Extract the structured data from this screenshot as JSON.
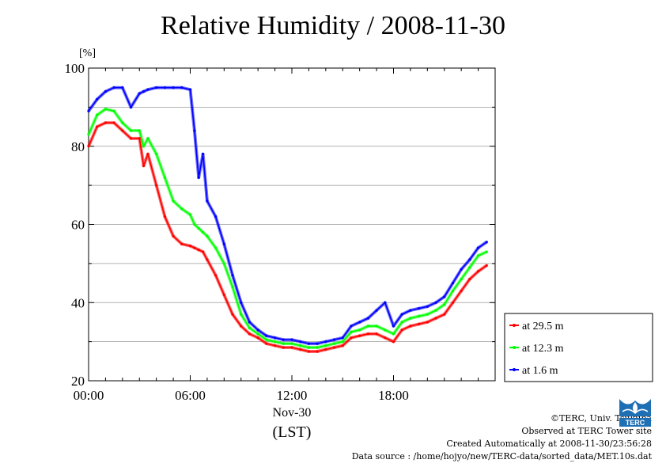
{
  "page": {
    "title": "Relative Humidity / 2008-11-30",
    "credits": [
      "©TERC, Univ. Tsukuba",
      "Observed at TERC Tower site",
      "Created Automatically at 2008-11-30/23:56:28",
      "Data source : /home/hojyo/new/TERC-data/sorted_data/MET.10s.dat"
    ],
    "logo_text": "TERC"
  },
  "chart_data": {
    "type": "line",
    "title": "Relative Humidity / 2008-11-30",
    "ylabel": "[%]",
    "xlabel": "Nov-30",
    "xlabel2": "(LST)",
    "xlim": [
      0,
      24
    ],
    "ylim": [
      20,
      100
    ],
    "xticks": [
      0,
      6,
      12,
      18
    ],
    "xtick_labels": [
      "00:00",
      "06:00",
      "12:00",
      "18:00"
    ],
    "yticks": [
      20,
      40,
      60,
      80,
      100
    ],
    "ytick_labels": [
      "20",
      "40",
      "60",
      "80",
      "100"
    ],
    "grid": true,
    "legend_position": "right, outside, lower",
    "x": [
      0,
      0.5,
      1,
      1.5,
      2,
      2.5,
      3,
      3.25,
      3.5,
      4,
      4.5,
      5,
      5.5,
      6,
      6.25,
      6.5,
      6.75,
      7,
      7.5,
      8,
      8.5,
      9,
      9.5,
      10,
      10.5,
      11,
      11.5,
      12,
      12.5,
      13,
      13.5,
      14,
      14.5,
      15,
      15.5,
      16,
      16.5,
      17,
      17.5,
      18,
      18.5,
      19,
      19.5,
      20,
      20.5,
      21,
      21.5,
      22,
      22.5,
      23,
      23.5
    ],
    "series": [
      {
        "name": "at 29.5 m",
        "color": "#ff0000",
        "values": [
          80,
          85,
          86,
          86,
          84,
          82,
          82,
          75,
          78,
          70,
          62,
          57,
          55,
          54.5,
          54,
          53.5,
          53,
          51,
          47,
          42,
          37,
          34,
          32,
          31,
          29.5,
          29,
          28.5,
          28.5,
          28,
          27.5,
          27.5,
          28,
          28.5,
          29,
          31,
          31.5,
          32,
          32,
          31,
          30,
          33,
          34,
          34.5,
          35,
          36,
          37,
          40,
          43,
          46,
          48,
          49.5
        ]
      },
      {
        "name": "at 12.3 m",
        "color": "#00ff00",
        "values": [
          83,
          88,
          89.5,
          89,
          86,
          84,
          84,
          80,
          82,
          78,
          72,
          66,
          64,
          62.5,
          60,
          59,
          58,
          57,
          54,
          50,
          44,
          37,
          33.5,
          32,
          30.5,
          30,
          29.5,
          29.5,
          29,
          28.5,
          28.5,
          29,
          29.5,
          30,
          32.5,
          33,
          34,
          34,
          33,
          32,
          35,
          36,
          36.5,
          37,
          38,
          39.5,
          43,
          46,
          49,
          52,
          53
        ]
      },
      {
        "name": "at 1.6 m",
        "color": "#0000ff",
        "values": [
          89,
          92,
          94,
          95,
          95,
          90,
          93.5,
          94,
          94.5,
          95,
          95,
          95,
          95,
          94.5,
          84,
          72,
          78,
          66,
          62,
          55,
          47,
          40,
          35,
          33,
          31.5,
          31,
          30.5,
          30.5,
          30,
          29.5,
          29.5,
          30,
          30.5,
          31,
          34,
          35,
          36,
          38,
          40,
          34,
          37,
          38,
          38.5,
          39,
          40,
          41.5,
          45,
          48.5,
          51,
          54,
          55.5
        ]
      }
    ]
  }
}
